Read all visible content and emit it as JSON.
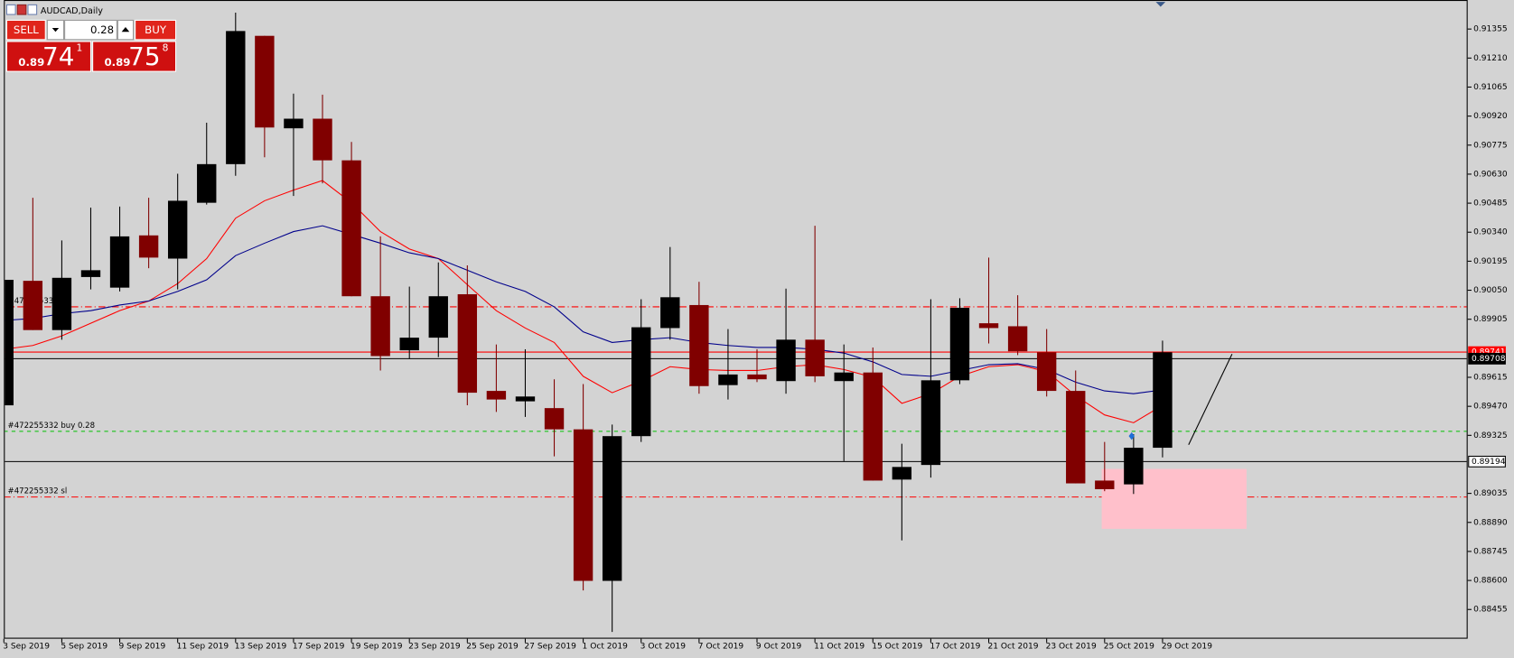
{
  "window": {
    "title": "AUDCAD,Daily"
  },
  "trade_panel": {
    "sell": "SELL",
    "buy": "BUY",
    "lot": "0.28",
    "bid": {
      "big": "0.89",
      "pips": "74",
      "point": "1"
    },
    "ask": {
      "big": "0.89",
      "pips": "75",
      "point": "8"
    }
  },
  "chart_data": {
    "type": "candlestick",
    "categories": [
      "3 Sep 2019",
      null,
      "5 Sep 2019",
      null,
      "9 Sep 2019",
      null,
      "11 Sep 2019",
      null,
      "13 Sep 2019",
      null,
      "17 Sep 2019",
      null,
      "19 Sep 2019",
      null,
      "23 Sep 2019",
      null,
      "25 Sep 2019",
      null,
      "27 Sep 2019",
      null,
      "1 Oct 2019",
      null,
      "3 Oct 2019",
      null,
      "7 Oct 2019",
      null,
      "9 Oct 2019",
      null,
      "11 Oct 2019",
      null,
      "15 Oct 2019",
      null,
      "17 Oct 2019",
      null,
      "21 Oct 2019",
      null,
      "23 Oct 2019",
      null,
      "25 Oct 2019",
      null,
      "29 Oct 2019"
    ],
    "open": [
      0.89475,
      0.90097,
      0.89851,
      0.90116,
      0.90063,
      0.90324,
      0.90208,
      0.90487,
      0.9068,
      0.91321,
      0.90859,
      0.90907,
      0.90699,
      0.9002,
      0.8975,
      0.89813,
      0.9003,
      0.89547,
      0.89495,
      0.89461,
      0.89355,
      0.88598,
      0.89321,
      0.89861,
      0.89976,
      0.89576,
      0.89629,
      0.89596,
      0.89803,
      0.89596,
      0.89639,
      0.89104,
      0.89177,
      0.896,
      0.89885,
      0.8987,
      0.8974,
      0.89547,
      0.89099,
      0.8908,
      0.89263
    ],
    "high": [
      0.90112,
      0.90512,
      0.90299,
      0.90463,
      0.90468,
      0.90512,
      0.90632,
      0.90887,
      0.91437,
      0.91321,
      0.91032,
      0.91027,
      0.90791,
      0.90319,
      0.90068,
      0.90189,
      0.90174,
      0.89779,
      0.89755,
      0.89605,
      0.89581,
      0.89379,
      0.90005,
      0.90266,
      0.90092,
      0.89856,
      0.89755,
      0.90058,
      0.90372,
      0.89779,
      0.89764,
      0.89283,
      0.90005,
      0.9001,
      0.90213,
      0.90025,
      0.89856,
      0.89649,
      0.89292,
      0.89331,
      0.89798
    ],
    "low": [
      0.89475,
      0.89851,
      0.89803,
      0.90054,
      0.90044,
      0.9016,
      0.90054,
      0.90478,
      0.90622,
      0.90714,
      0.90521,
      0.90584,
      0.9002,
      0.89649,
      0.89707,
      0.89716,
      0.89475,
      0.89442,
      0.89417,
      0.8922,
      0.8855,
      0.88343,
      0.89292,
      0.89803,
      0.89533,
      0.89504,
      0.89591,
      0.89533,
      0.89591,
      0.89196,
      0.89099,
      0.888,
      0.89114,
      0.89581,
      0.89784,
      0.89726,
      0.89519,
      0.89085,
      0.89046,
      0.89032,
      0.89215
    ],
    "close": [
      0.90102,
      0.89851,
      0.90112,
      0.9015,
      0.90319,
      0.90213,
      0.90497,
      0.9068,
      0.91345,
      0.90863,
      0.90907,
      0.90699,
      0.9002,
      0.89721,
      0.89813,
      0.9002,
      0.89538,
      0.89504,
      0.89519,
      0.89355,
      0.88598,
      0.89321,
      0.89865,
      0.90015,
      0.89571,
      0.89629,
      0.89605,
      0.89803,
      0.8962,
      0.89639,
      0.89099,
      0.89167,
      0.896,
      0.89962,
      0.89861,
      0.89745,
      0.89547,
      0.89085,
      0.89056,
      0.89263,
      0.8974
    ],
    "up_color": "#000000",
    "down_color": "#800000",
    "indicators": [
      {
        "color": "#ff0000",
        "values": [
          0.89755,
          0.89774,
          0.89822,
          0.89885,
          0.89948,
          0.89996,
          0.90083,
          0.90208,
          0.9041,
          0.90497,
          0.9055,
          0.90598,
          0.90487,
          0.90343,
          0.90256,
          0.90208,
          0.90078,
          0.89948,
          0.89861,
          0.89789,
          0.8962,
          0.89538,
          0.89596,
          0.89668,
          0.89654,
          0.89649,
          0.89649,
          0.89668,
          0.89678,
          0.89654,
          0.89615,
          0.89485,
          0.89533,
          0.8962,
          0.89668,
          0.89678,
          0.89644,
          0.89523,
          0.89427,
          0.89388,
          0.89475
        ]
      },
      {
        "color": "#00008b",
        "values": [
          0.89899,
          0.89909,
          0.89933,
          0.89948,
          0.89976,
          0.89996,
          0.90044,
          0.90102,
          0.90223,
          0.90285,
          0.90343,
          0.90372,
          0.90329,
          0.90285,
          0.90237,
          0.90208,
          0.9015,
          0.90092,
          0.90044,
          0.89967,
          0.89842,
          0.89789,
          0.89803,
          0.89813,
          0.89789,
          0.89774,
          0.89764,
          0.89764,
          0.89755,
          0.89736,
          0.89692,
          0.89629,
          0.8962,
          0.89649,
          0.89678,
          0.89683,
          0.89654,
          0.89591,
          0.89547,
          0.89533,
          0.89552
        ]
      }
    ],
    "levels": [
      {
        "label": "#472255332 tp",
        "value": 0.89967,
        "color": "#ff0000",
        "dash": "dashdot"
      },
      {
        "label": "#472255332 buy 0.28",
        "value": 0.89345,
        "color": "#00c000",
        "dash": "dash"
      },
      {
        "label": "#472255332 sl",
        "value": 0.89017,
        "color": "#ff0000",
        "dash": "dashdot"
      }
    ],
    "price_lines": [
      {
        "value": 0.89741,
        "color": "#ff0000",
        "label_fill": "#ff0000"
      },
      {
        "value": 0.89708,
        "color": "#000000",
        "label_fill": "#000000"
      },
      {
        "value": 0.89194,
        "color": "#000000",
        "label_fill": "#ffffff"
      }
    ],
    "trendline": {
      "x": [
        40.9,
        42.4
      ],
      "y": [
        0.89278,
        0.89731
      ],
      "color": "#000000"
    },
    "zone": {
      "x": [
        37.9,
        42.9
      ],
      "y": [
        0.88858,
        0.89157
      ],
      "color": "#ffc0cb"
    },
    "ylim": [
      0.88309,
      0.915
    ],
    "yticks": [
      0.91355,
      {
        "value": 0.9121,
        "label": "0.91210"
      },
      0.91065,
      {
        "value": 0.9092,
        "label": "0.90920"
      },
      0.90775,
      {
        "value": 0.9063,
        "label": "0.90630"
      },
      0.90485,
      {
        "value": 0.9034,
        "label": "0.90340"
      },
      0.90195,
      {
        "value": 0.9005,
        "label": "0.90050"
      },
      0.89905,
      0.89615,
      {
        "value": 0.8947,
        "label": "0.89470"
      },
      0.89325,
      0.89035,
      {
        "value": 0.8889,
        "label": "0.88890"
      },
      0.88745,
      {
        "value": 0.886,
        "label": "0.88600"
      },
      0.88455
    ]
  }
}
